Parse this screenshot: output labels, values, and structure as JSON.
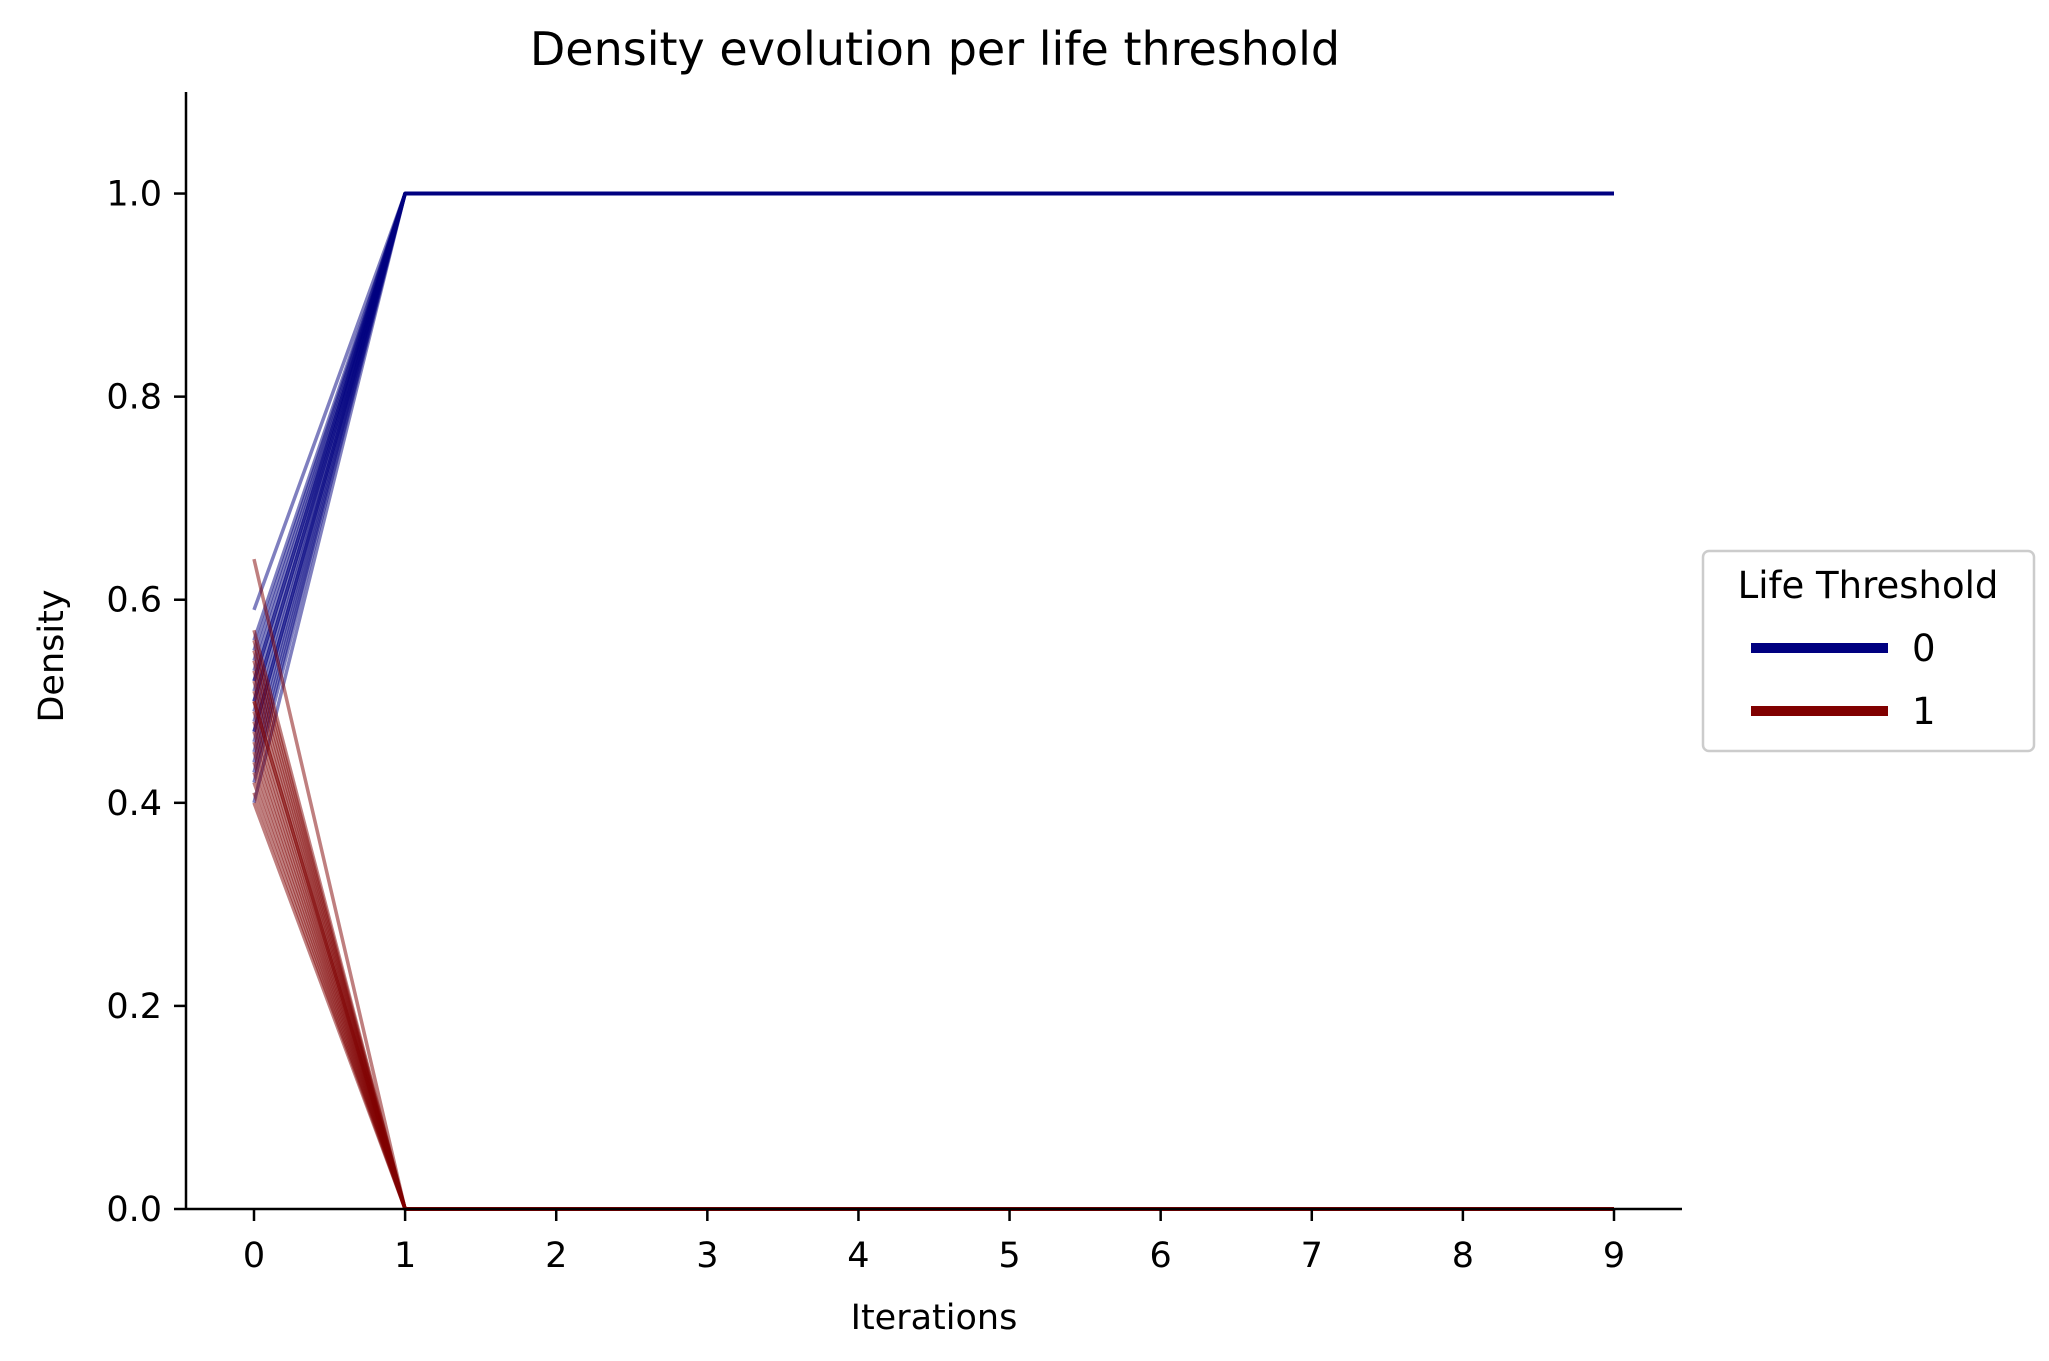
{
  "chart_data": {
    "type": "line",
    "title": "Density evolution per life threshold",
    "xlabel": "Iterations",
    "ylabel": "Density",
    "x_ticks": [
      0,
      1,
      2,
      3,
      4,
      5,
      6,
      7,
      8,
      9
    ],
    "y_ticks": [
      0.0,
      0.2,
      0.4,
      0.6,
      0.8,
      1.0
    ],
    "y_tick_labels": [
      "0.0",
      "0.2",
      "0.4",
      "0.6",
      "0.8",
      "1.0"
    ],
    "xlim": [
      -0.45,
      9.45
    ],
    "ylim": [
      0.0,
      1.1
    ],
    "grid": false,
    "legend": {
      "title": "Life Threshold",
      "placement": "center-right outside",
      "entries": [
        {
          "label": "0",
          "color": "#000080"
        },
        {
          "label": "1",
          "color": "#800000"
        }
      ]
    },
    "x": [
      0,
      1,
      2,
      3,
      4,
      5,
      6,
      7,
      8,
      9
    ],
    "groups": [
      {
        "label": "0",
        "color": "#000080",
        "final_value": 1.0,
        "initial_values": [
          0.59,
          0.56,
          0.55,
          0.54,
          0.53,
          0.52,
          0.51,
          0.5,
          0.49,
          0.48,
          0.47,
          0.46,
          0.45,
          0.44,
          0.43,
          0.42,
          0.4,
          0.52,
          0.5,
          0.47
        ]
      },
      {
        "label": "1",
        "color": "#800000",
        "final_value": 0.0,
        "initial_values": [
          0.64,
          0.57,
          0.56,
          0.55,
          0.54,
          0.53,
          0.52,
          0.51,
          0.5,
          0.49,
          0.48,
          0.47,
          0.46,
          0.45,
          0.44,
          0.43,
          0.42,
          0.41,
          0.4,
          0.5
        ]
      }
    ]
  }
}
